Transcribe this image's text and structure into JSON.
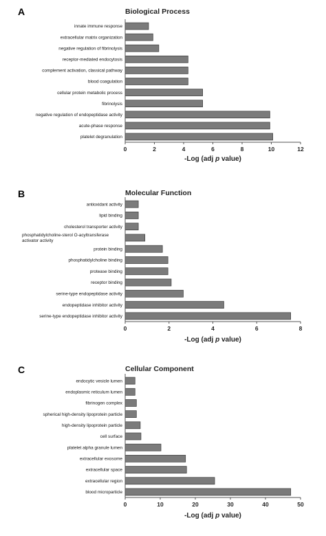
{
  "chart_data": [
    {
      "panel": "A",
      "type": "bar",
      "orientation": "horizontal",
      "title": "Biological Process",
      "xlabel_prefix": "-Log (adj ",
      "xlabel_italic": "p",
      "xlabel_suffix": " value)",
      "xlim": [
        0,
        12
      ],
      "xticks": [
        0,
        2,
        4,
        6,
        8,
        10,
        12
      ],
      "categories": [
        [
          "innate immune response"
        ],
        [
          "extracellular matrix organization"
        ],
        [
          "negative regulation of fibrinolysis"
        ],
        [
          "receptor-mediated endocytosis"
        ],
        [
          "complement activation, classical pathway"
        ],
        [
          "blood coagulation"
        ],
        [
          "cellular protein metabolic process"
        ],
        [
          "fibrinolysis"
        ],
        [
          "negative regulation of endopeptidase activity"
        ],
        [
          "acute-phase response"
        ],
        [
          "platelet degranulation"
        ]
      ],
      "values": [
        1.6,
        1.9,
        2.3,
        4.3,
        4.3,
        4.3,
        5.3,
        5.3,
        9.9,
        9.9,
        10.1
      ],
      "bar_color": "#7b7b7b"
    },
    {
      "panel": "B",
      "type": "bar",
      "orientation": "horizontal",
      "title": "Molecular Function",
      "xlabel_prefix": "-Log (adj ",
      "xlabel_italic": "p",
      "xlabel_suffix": " value)",
      "xlim": [
        0,
        8
      ],
      "xticks": [
        0,
        2,
        4,
        6,
        8
      ],
      "categories": [
        [
          "antioxidant activity"
        ],
        [
          "lipid binding"
        ],
        [
          "cholesterol transporter activity"
        ],
        [
          "phosphatidylcholine-sterol O-acyltransferase",
          "activator activity"
        ],
        [
          "protein binding"
        ],
        [
          "phosphatidylcholine binding"
        ],
        [
          "protease binding"
        ],
        [
          "receptor binding"
        ],
        [
          "serine-type endopeptidase activity"
        ],
        [
          "endopeptidase inhibitor activity"
        ],
        [
          "serine-type endopeptidase inhibitor activity"
        ]
      ],
      "values": [
        0.6,
        0.6,
        0.6,
        0.9,
        1.7,
        1.95,
        1.95,
        2.1,
        2.65,
        4.5,
        7.55
      ],
      "bar_color": "#7b7b7b"
    },
    {
      "panel": "C",
      "type": "bar",
      "orientation": "horizontal",
      "title": "Cellular Component",
      "xlabel_prefix": "-Log (adj ",
      "xlabel_italic": "p",
      "xlabel_suffix": " value)",
      "xlim": [
        0,
        50
      ],
      "xticks": [
        0,
        10,
        20,
        30,
        40,
        50
      ],
      "categories": [
        [
          "endocytic vesicle lumen"
        ],
        [
          "endoplasmic reticulum lumen"
        ],
        [
          "fibrinogen complex"
        ],
        [
          "spherical high-density lipoprotein particle"
        ],
        [
          "high-density lipoprotein particle"
        ],
        [
          "cell surface"
        ],
        [
          "platelet alpha granule lumen"
        ],
        [
          "extracellular exosome"
        ],
        [
          "extracellular space"
        ],
        [
          "extracellular region"
        ],
        [
          "blood microparticle"
        ]
      ],
      "values": [
        2.8,
        2.8,
        3.2,
        3.2,
        4.3,
        4.5,
        10.2,
        17.2,
        17.5,
        25.5,
        47.2
      ],
      "bar_color": "#7b7b7b"
    }
  ]
}
